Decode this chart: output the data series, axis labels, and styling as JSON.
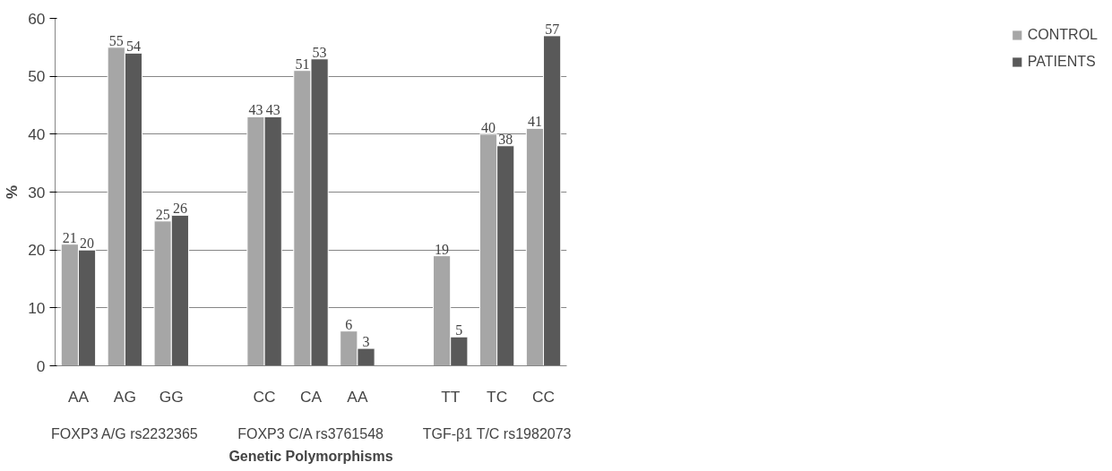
{
  "chart_data": {
    "type": "bar",
    "xlabel": "Genetic Polymorphisms",
    "ylabel": "%",
    "categories": [
      "AA",
      "AG",
      "GG",
      null,
      "CC",
      "CA",
      "AA",
      null,
      "TT",
      "TC",
      "CC"
    ],
    "series": [
      {
        "name": "CONTROL",
        "color": "#a6a6a6",
        "values": [
          21,
          55,
          25,
          null,
          43,
          51,
          6,
          null,
          19,
          40,
          41
        ]
      },
      {
        "name": "PATIENTS",
        "color": "#595959",
        "values": [
          20,
          54,
          26,
          null,
          43,
          53,
          3,
          null,
          5,
          38,
          57
        ]
      }
    ],
    "annotations": [
      "FOXP3 A/G rs2232365",
      "FOXP3 C/A rs3761548",
      "TGF-β1 T/C rs1982073"
    ],
    "ylim": [
      0,
      60
    ],
    "yticks": [
      0,
      10,
      20,
      30,
      40,
      50,
      60
    ],
    "grid": "y",
    "legend": "right",
    "data_labels": true
  }
}
